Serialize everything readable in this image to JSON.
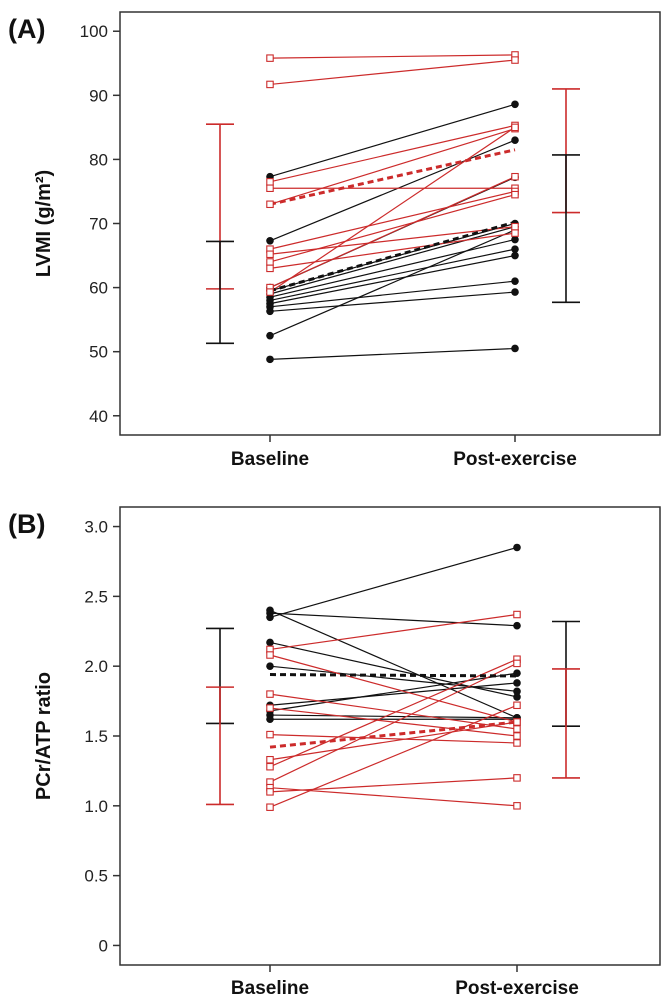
{
  "colors": {
    "red": "#cc2b2b",
    "black": "#111111",
    "frame": "#333333"
  },
  "chart_data": [
    {
      "type": "line",
      "panel_label": "(A)",
      "ylabel": "LVMI (g/m²)",
      "categories": [
        "Baseline",
        "Post-exercise"
      ],
      "ylim": [
        37,
        103
      ],
      "yticks": [
        40,
        50,
        60,
        70,
        80,
        90,
        100
      ],
      "ytick_labels": [
        "40",
        "50",
        "60",
        "70",
        "80",
        "90",
        "100"
      ],
      "marker_legend": {
        "black": "filled circle",
        "red": "open square"
      },
      "series": [
        {
          "color": "black",
          "values": [
            77.3,
            88.6
          ]
        },
        {
          "color": "black",
          "values": [
            67.3,
            83.0
          ]
        },
        {
          "color": "black",
          "values": [
            60.0,
            77.2
          ]
        },
        {
          "color": "black",
          "values": [
            59.5,
            70.0
          ]
        },
        {
          "color": "black",
          "values": [
            59.0,
            69.5
          ]
        },
        {
          "color": "black",
          "values": [
            58.5,
            67.5
          ]
        },
        {
          "color": "black",
          "values": [
            58.0,
            66.0
          ]
        },
        {
          "color": "black",
          "values": [
            57.5,
            65.0
          ]
        },
        {
          "color": "black",
          "values": [
            57.0,
            61.0
          ]
        },
        {
          "color": "black",
          "values": [
            56.3,
            59.3
          ]
        },
        {
          "color": "black",
          "values": [
            52.5,
            69.0
          ]
        },
        {
          "color": "black",
          "values": [
            48.8,
            50.5
          ]
        },
        {
          "color": "red",
          "values": [
            95.8,
            96.3
          ]
        },
        {
          "color": "red",
          "values": [
            91.7,
            95.5
          ]
        },
        {
          "color": "red",
          "values": [
            76.5,
            85.3
          ]
        },
        {
          "color": "red",
          "values": [
            75.5,
            75.5
          ]
        },
        {
          "color": "red",
          "values": [
            73.0,
            84.8
          ]
        },
        {
          "color": "red",
          "values": [
            66.0,
            75.0
          ]
        },
        {
          "color": "red",
          "values": [
            65.2,
            69.5
          ]
        },
        {
          "color": "red",
          "values": [
            64.0,
            74.5
          ]
        },
        {
          "color": "red",
          "values": [
            63.0,
            68.5
          ]
        },
        {
          "color": "red",
          "values": [
            60.0,
            77.3
          ]
        },
        {
          "color": "red",
          "values": [
            59.3,
            85.0
          ]
        }
      ],
      "means": [
        {
          "color": "red",
          "values": [
            73.0,
            81.5
          ]
        },
        {
          "color": "black",
          "values": [
            59.5,
            70.2
          ]
        }
      ],
      "error_bars": [
        {
          "color": "red",
          "position": "left",
          "low": 59.8,
          "high": 85.5
        },
        {
          "color": "black",
          "position": "left",
          "low": 51.3,
          "high": 67.2
        },
        {
          "color": "red",
          "position": "right",
          "low": 71.7,
          "high": 91.0
        },
        {
          "color": "black",
          "position": "right",
          "low": 57.7,
          "high": 80.7
        }
      ]
    },
    {
      "type": "line",
      "panel_label": "(B)",
      "ylabel": "PCr/ATP ratio",
      "categories": [
        "Baseline",
        "Post-exercise"
      ],
      "ylim": [
        -0.14,
        3.14
      ],
      "yticks": [
        0,
        0.5,
        1.0,
        1.5,
        2.0,
        2.5,
        3.0
      ],
      "ytick_labels": [
        "0",
        "0.5",
        "1.0",
        "1.5",
        "2.0",
        "2.5",
        "3.0"
      ],
      "marker_legend": {
        "black": "filled circle",
        "red": "open square"
      },
      "series": [
        {
          "color": "black",
          "values": [
            2.4,
            1.63
          ]
        },
        {
          "color": "black",
          "values": [
            2.38,
            2.29
          ]
        },
        {
          "color": "black",
          "values": [
            2.35,
            2.85
          ]
        },
        {
          "color": "black",
          "values": [
            2.17,
            1.78
          ]
        },
        {
          "color": "black",
          "values": [
            2.0,
            1.82
          ]
        },
        {
          "color": "black",
          "values": [
            1.72,
            1.88
          ]
        },
        {
          "color": "black",
          "values": [
            1.68,
            1.95
          ]
        },
        {
          "color": "black",
          "values": [
            1.65,
            1.63
          ]
        },
        {
          "color": "black",
          "values": [
            1.62,
            1.62
          ]
        },
        {
          "color": "red",
          "values": [
            2.12,
            2.37
          ]
        },
        {
          "color": "red",
          "values": [
            2.08,
            1.6
          ]
        },
        {
          "color": "red",
          "values": [
            1.8,
            1.55
          ]
        },
        {
          "color": "red",
          "values": [
            1.7,
            1.5
          ]
        },
        {
          "color": "red",
          "values": [
            1.51,
            1.45
          ]
        },
        {
          "color": "red",
          "values": [
            1.33,
            1.6
          ]
        },
        {
          "color": "red",
          "values": [
            1.28,
            2.05
          ]
        },
        {
          "color": "red",
          "values": [
            1.17,
            2.02
          ]
        },
        {
          "color": "red",
          "values": [
            1.13,
            1.0
          ]
        },
        {
          "color": "red",
          "values": [
            1.1,
            1.2
          ]
        },
        {
          "color": "red",
          "values": [
            0.99,
            1.72
          ]
        }
      ],
      "means": [
        {
          "color": "black",
          "values": [
            1.94,
            1.93
          ]
        },
        {
          "color": "red",
          "values": [
            1.42,
            1.6
          ]
        }
      ],
      "error_bars": [
        {
          "color": "black",
          "position": "left",
          "low": 1.59,
          "high": 2.27
        },
        {
          "color": "red",
          "position": "left",
          "low": 1.01,
          "high": 1.85
        },
        {
          "color": "black",
          "position": "right",
          "low": 1.57,
          "high": 2.32
        },
        {
          "color": "red",
          "position": "right",
          "low": 1.2,
          "high": 1.98
        }
      ]
    }
  ]
}
